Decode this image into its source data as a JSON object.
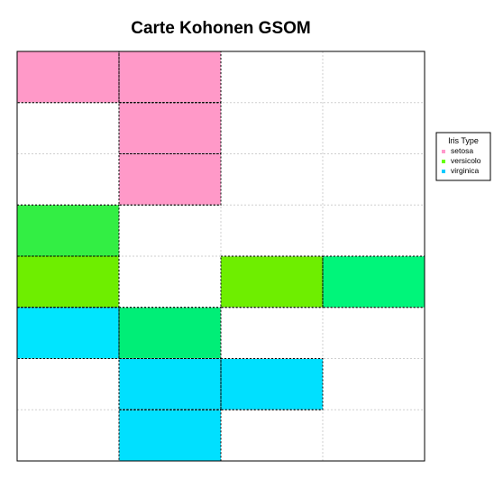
{
  "chart_data": {
    "type": "heatmap",
    "title": "Carte Kohonen GSOM",
    "grid": true,
    "legend_position": "right",
    "legend_title": "Iris Type",
    "columns": 4,
    "rows": 8,
    "legend": [
      {
        "label": "setosa",
        "color": "#ff99cc"
      },
      {
        "label": "versicolo",
        "color": "#66ff00"
      },
      {
        "label": "virginica",
        "color": "#00ccff"
      }
    ],
    "cells": [
      {
        "row": 0,
        "col": 0,
        "class": "setosa",
        "color": "#ff99c8"
      },
      {
        "row": 0,
        "col": 1,
        "class": "setosa",
        "color": "#ff99c8"
      },
      {
        "row": 1,
        "col": 1,
        "class": "setosa",
        "color": "#ff99c8"
      },
      {
        "row": 2,
        "col": 1,
        "class": "setosa",
        "color": "#ff99c8"
      },
      {
        "row": 3,
        "col": 0,
        "class": "versicolo",
        "color": "#33ee44"
      },
      {
        "row": 4,
        "col": 0,
        "class": "versicolo",
        "color": "#6eee00"
      },
      {
        "row": 4,
        "col": 2,
        "class": "versicolo",
        "color": "#6eee00"
      },
      {
        "row": 4,
        "col": 3,
        "class": "versicolo",
        "color": "#00f57a"
      },
      {
        "row": 5,
        "col": 0,
        "class": "virginica",
        "color": "#00e5ff"
      },
      {
        "row": 5,
        "col": 1,
        "class": "versicolo",
        "color": "#00ee77"
      },
      {
        "row": 6,
        "col": 1,
        "class": "virginica",
        "color": "#00e0ff"
      },
      {
        "row": 6,
        "col": 2,
        "class": "virginica",
        "color": "#00e0ff"
      },
      {
        "row": 7,
        "col": 1,
        "class": "virginica",
        "color": "#00e0ff"
      }
    ]
  }
}
